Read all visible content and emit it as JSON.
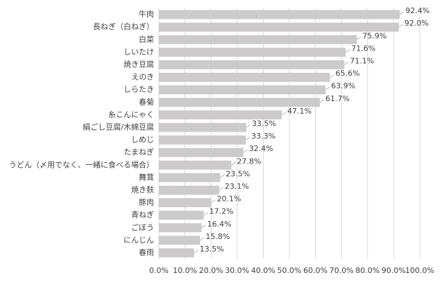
{
  "chart_data": {
    "type": "bar",
    "orientation": "horizontal",
    "categories": [
      "牛肉",
      "長ねぎ（白ねぎ）",
      "白菜",
      "しいたけ",
      "焼き豆腐",
      "えのき",
      "しらたき",
      "春菊",
      "糸こんにゃく",
      "絹ごし豆腐/木綿豆腐",
      "しめじ",
      "たまねぎ",
      "うどん（〆用でなく、一緒に食べる場合）",
      "舞茸",
      "焼き麸",
      "豚肉",
      "青ねぎ",
      "ごぼう",
      "にんじん",
      "春雨"
    ],
    "values": [
      92.4,
      92.0,
      75.9,
      71.6,
      71.1,
      65.6,
      63.9,
      61.7,
      47.1,
      33.5,
      33.3,
      32.4,
      27.8,
      23.5,
      23.1,
      20.1,
      17.2,
      16.4,
      15.8,
      13.5
    ],
    "value_labels": [
      "92.4%",
      "92.0%",
      "75.9%",
      "71.6%",
      "71.1%",
      "65.6%",
      "63.9%",
      "61.7%",
      "47.1%",
      "33.5%",
      "33.3%",
      "32.4%",
      "27.8%",
      "23.5%",
      "23.1%",
      "20.1%",
      "17.2%",
      "16.4%",
      "15.8%",
      "13.5%"
    ],
    "color": "#cccaca",
    "xlim": [
      0,
      100
    ],
    "xticks": [
      {
        "value": 0,
        "label": "0.0%"
      },
      {
        "value": 10,
        "label": "10.0%"
      },
      {
        "value": 20,
        "label": "20.0%"
      },
      {
        "value": 30,
        "label": "30.0%"
      },
      {
        "value": 40,
        "label": "40.0%"
      },
      {
        "value": 50,
        "label": "50.0%"
      },
      {
        "value": 60,
        "label": "60.0%"
      },
      {
        "value": 70,
        "label": "70.0%"
      },
      {
        "value": 80,
        "label": "80.0%"
      },
      {
        "value": 90,
        "label": "90.0%"
      },
      {
        "value": 100,
        "label": "100.0%"
      }
    ],
    "grid": true
  }
}
